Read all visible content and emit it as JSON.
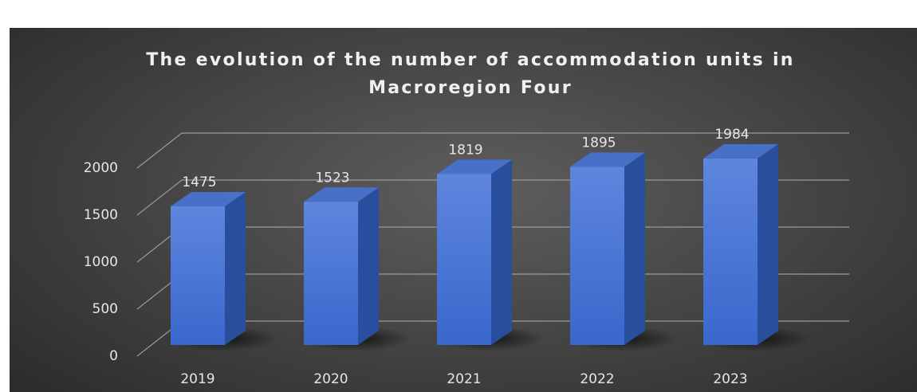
{
  "chart_data": {
    "type": "bar3d",
    "title": "The evolution of the number of accommodation units in Macroregion Four",
    "categories": [
      "2019",
      "2020",
      "2021",
      "2022",
      "2023"
    ],
    "values": [
      1475,
      1523,
      1819,
      1895,
      1984
    ],
    "color": "#4f7ad8",
    "ylim": [
      0,
      2000
    ],
    "yticks": [
      0,
      500,
      1000,
      1500,
      2000
    ],
    "grid": true
  }
}
